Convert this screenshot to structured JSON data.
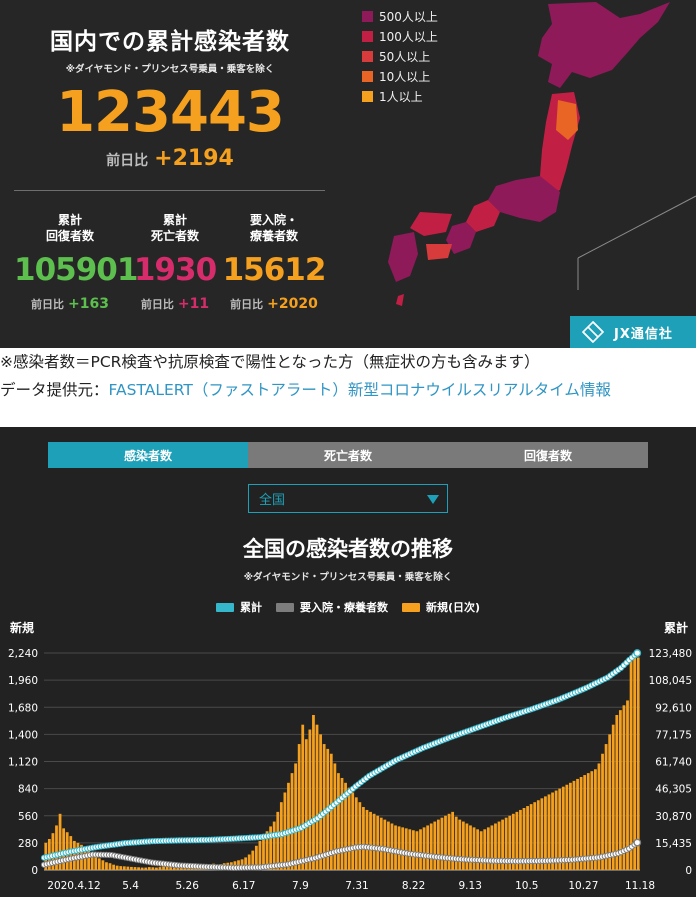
{
  "summary": {
    "title": "国内での累計感染者数",
    "note": "※ダイヤモンド・プリンセス号乗員・乗客を除く",
    "total": "123443",
    "diff_label": "前日比",
    "diff_value": "+2194",
    "stats": [
      {
        "label_line1": "累計",
        "label_line2": "回復者数",
        "value": "105901",
        "diff_label": "前日比",
        "diff_value": "+163",
        "color": "#5cbf4e"
      },
      {
        "label_line1": "累計",
        "label_line2": "死亡者数",
        "value": "1930",
        "diff_label": "前日比",
        "diff_value": "+11",
        "color": "#d62c6b"
      },
      {
        "label_line1": "要入院・",
        "label_line2": "療養者数",
        "value": "15612",
        "diff_label": "前日比",
        "diff_value": "+2020",
        "color": "#f5a11f"
      }
    ]
  },
  "map_legend": [
    {
      "label": "500人以上",
      "color": "#8e1a5a"
    },
    {
      "label": "100人以上",
      "color": "#c21f45"
    },
    {
      "label": "50人以上",
      "color": "#d83b3b"
    },
    {
      "label": "10人以上",
      "color": "#e86526"
    },
    {
      "label": "1人以上",
      "color": "#f5a11f"
    }
  ],
  "brand": {
    "name": "JX通信社"
  },
  "notes": {
    "definition": "※感染者数＝PCR検査や抗原検査で陽性となった方（無症状の方も含みます）",
    "source_prefix": "データ提供元：",
    "source_link": "FASTALERT（ファストアラート）新型コロナウイルスリアルタイム情報"
  },
  "tabs": [
    {
      "label": "感染者数",
      "active": true
    },
    {
      "label": "死亡者数",
      "active": false
    },
    {
      "label": "回復者数",
      "active": false
    }
  ],
  "region_select": {
    "value": "全国"
  },
  "chart_data": {
    "type": "bar",
    "title": "全国の感染者数の推移",
    "subtitle": "※ダイヤモンド・プリンセス号乗員・乗客を除く",
    "left_axis_title": "新規",
    "right_axis_title": "累計",
    "left_ticks": [
      "0",
      "280",
      "560",
      "840",
      "1,120",
      "1,400",
      "1,680",
      "1,960",
      "2,240"
    ],
    "right_ticks": [
      "0",
      "15,435",
      "30,870",
      "46,305",
      "61,740",
      "77,175",
      "92,610",
      "108,045",
      "123,480"
    ],
    "ylim_left": [
      0,
      2240
    ],
    "ylim_right": [
      0,
      123480
    ],
    "x_labels": [
      "2020.4.12",
      "5.4",
      "5.26",
      "6.17",
      "7.9",
      "7.31",
      "8.22",
      "9.13",
      "10.5",
      "10.27",
      "11.18"
    ],
    "x_range_days": [
      0,
      220
    ],
    "series": [
      {
        "name": "累計",
        "kind": "line",
        "axis": "right",
        "color": "#35b7cc",
        "points": [
          [
            0,
            7000
          ],
          [
            10,
            10500
          ],
          [
            20,
            13200
          ],
          [
            30,
            15300
          ],
          [
            40,
            16400
          ],
          [
            50,
            16850
          ],
          [
            60,
            17100
          ],
          [
            70,
            17800
          ],
          [
            80,
            18700
          ],
          [
            88,
            20500
          ],
          [
            95,
            24000
          ],
          [
            101,
            29500
          ],
          [
            105,
            34500
          ],
          [
            110,
            41000
          ],
          [
            115,
            47500
          ],
          [
            120,
            53500
          ],
          [
            125,
            58000
          ],
          [
            130,
            62500
          ],
          [
            140,
            69500
          ],
          [
            150,
            75500
          ],
          [
            160,
            81000
          ],
          [
            170,
            86500
          ],
          [
            180,
            91500
          ],
          [
            190,
            97000
          ],
          [
            200,
            103500
          ],
          [
            208,
            109500
          ],
          [
            213,
            115000
          ],
          [
            216,
            119500
          ],
          [
            219,
            123443
          ]
        ]
      },
      {
        "name": "要入院・療養者数",
        "kind": "line",
        "axis": "right",
        "color": "#7d7d7d",
        "points": [
          [
            0,
            3000
          ],
          [
            10,
            6500
          ],
          [
            18,
            8800
          ],
          [
            25,
            8500
          ],
          [
            32,
            6500
          ],
          [
            40,
            4200
          ],
          [
            50,
            2600
          ],
          [
            60,
            1800
          ],
          [
            70,
            1200
          ],
          [
            80,
            1500
          ],
          [
            90,
            3200
          ],
          [
            100,
            6800
          ],
          [
            108,
            10600
          ],
          [
            115,
            12800
          ],
          [
            118,
            13200
          ],
          [
            125,
            12000
          ],
          [
            135,
            9200
          ],
          [
            145,
            7400
          ],
          [
            155,
            6000
          ],
          [
            165,
            5300
          ],
          [
            175,
            5000
          ],
          [
            185,
            5200
          ],
          [
            195,
            5800
          ],
          [
            205,
            7200
          ],
          [
            212,
            9500
          ],
          [
            216,
            12200
          ],
          [
            219,
            15612
          ]
        ]
      },
      {
        "name": "新規(日次)",
        "kind": "bar",
        "axis": "left",
        "color": "#f5a11f",
        "values": [
          280,
          320,
          380,
          460,
          580,
          430,
          390,
          350,
          300,
          280,
          260,
          230,
          200,
          170,
          150,
          120,
          100,
          80,
          70,
          55,
          45,
          40,
          38,
          35,
          32,
          30,
          28,
          25,
          25,
          30,
          28,
          25,
          30,
          35,
          40,
          45,
          40,
          38,
          40,
          45,
          40,
          45,
          50,
          55,
          45,
          50,
          60,
          65,
          55,
          60,
          70,
          75,
          80,
          90,
          100,
          110,
          130,
          160,
          200,
          250,
          300,
          350,
          400,
          450,
          500,
          600,
          700,
          800,
          900,
          1000,
          1100,
          1300,
          1500,
          1350,
          1450,
          1600,
          1500,
          1400,
          1300,
          1250,
          1200,
          1100,
          1000,
          950,
          900,
          850,
          800,
          750,
          700,
          650,
          620,
          600,
          580,
          560,
          540,
          520,
          500,
          480,
          460,
          450,
          440,
          430,
          420,
          410,
          400,
          420,
          440,
          460,
          480,
          500,
          520,
          540,
          560,
          580,
          600,
          550,
          520,
          500,
          480,
          460,
          440,
          420,
          400,
          420,
          440,
          460,
          480,
          500,
          520,
          540,
          560,
          580,
          600,
          620,
          640,
          660,
          680,
          700,
          720,
          740,
          760,
          780,
          800,
          820,
          840,
          860,
          880,
          900,
          920,
          940,
          960,
          980,
          1000,
          1020,
          1040,
          1100,
          1200,
          1300,
          1400,
          1500,
          1600,
          1650,
          1700,
          1750,
          2194,
          2194,
          2194
        ]
      }
    ]
  }
}
